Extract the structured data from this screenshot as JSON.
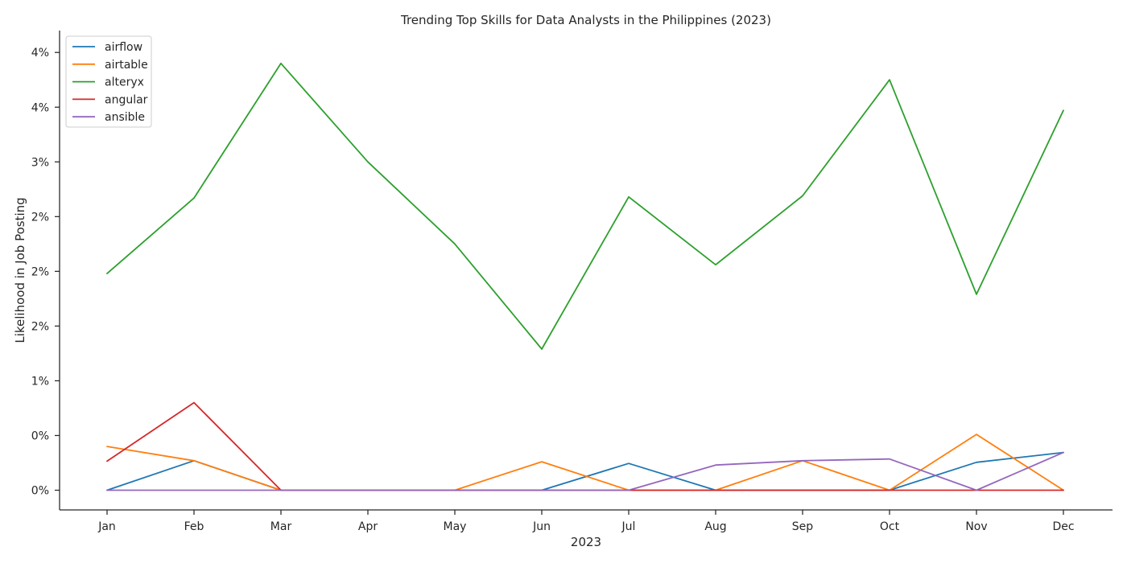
{
  "chart_data": {
    "type": "line",
    "title": "Trending Top Skills for Data Analysts in the Philippines (2023)",
    "xlabel": "2023",
    "ylabel": "Likelihood in Job Posting",
    "categories": [
      "Jan",
      "Feb",
      "Mar",
      "Apr",
      "May",
      "Jun",
      "Jul",
      "Aug",
      "Sep",
      "Oct",
      "Nov",
      "Dec"
    ],
    "ylim": [
      -0.18,
      4.2
    ],
    "yticks": [
      {
        "value": 0.0,
        "label": "0%"
      },
      {
        "value": 0.5,
        "label": "0%"
      },
      {
        "value": 1.0,
        "label": "1%"
      },
      {
        "value": 1.5,
        "label": "2%"
      },
      {
        "value": 2.0,
        "label": "2%"
      },
      {
        "value": 2.5,
        "label": "2%"
      },
      {
        "value": 3.0,
        "label": "3%"
      },
      {
        "value": 3.5,
        "label": "4%"
      },
      {
        "value": 4.0,
        "label": "4%"
      }
    ],
    "grid": false,
    "legend_position": "top-left",
    "series": [
      {
        "name": "airflow",
        "color": "#1f77b4",
        "values": [
          0.0,
          0.27,
          0.0,
          0.0,
          0.0,
          0.0,
          0.245,
          0.0,
          0.0,
          0.0,
          0.255,
          0.345
        ]
      },
      {
        "name": "airtable",
        "color": "#ff7f0e",
        "values": [
          0.4,
          0.27,
          0.0,
          0.0,
          0.0,
          0.26,
          0.0,
          0.0,
          0.27,
          0.0,
          0.51,
          0.0
        ]
      },
      {
        "name": "alteryx",
        "color": "#2ca02c",
        "values": [
          1.98,
          2.67,
          3.9,
          3.0,
          2.25,
          1.29,
          2.68,
          2.06,
          2.69,
          3.75,
          1.79,
          3.47
        ]
      },
      {
        "name": "angular",
        "color": "#d62728",
        "values": [
          0.265,
          0.8,
          0.0,
          0.0,
          0.0,
          0.0,
          0.0,
          0.0,
          0.0,
          0.0,
          0.0,
          0.0
        ]
      },
      {
        "name": "ansible",
        "color": "#9467bd",
        "values": [
          0.0,
          0.0,
          0.0,
          0.0,
          0.0,
          0.0,
          0.0,
          0.23,
          0.27,
          0.285,
          0.0,
          0.345
        ]
      }
    ]
  }
}
